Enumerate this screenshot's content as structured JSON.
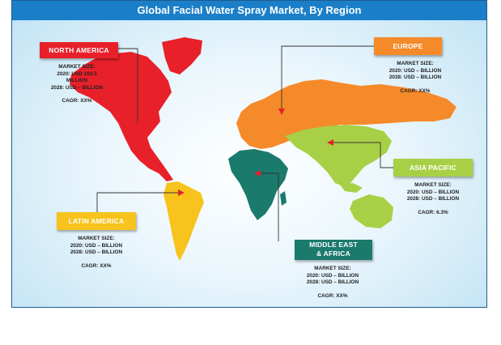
{
  "title": "Global Facial Water Spray Market, By Region",
  "colors": {
    "title_bar": "#1a7fc8",
    "north_america": "#e8202a",
    "europe": "#f58a2a",
    "asia_pacific": "#a8d046",
    "latin_america": "#f7c31c",
    "mea": "#1a7a6c",
    "ocean_light": "#eaf6fc"
  },
  "regions": {
    "north_america": {
      "name": "NORTH AMERICA",
      "label": "MARKET SIZE:",
      "line1": "2020: USD 163.5",
      "line2": "MILLION",
      "line3": "2028: USD – BILLION",
      "cagr": "CAGR: XX%"
    },
    "europe": {
      "name": "EUROPE",
      "label": "MARKET SIZE:",
      "line1": "2020: USD – BILLION",
      "line2": "2028: USD – BILLION",
      "cagr": "CAGR: XX%"
    },
    "asia_pacific": {
      "name": "ASIA PACIFIC",
      "label": "MARKET SIZE:",
      "line1": "2020: USD – BILLION",
      "line2": "2028: USD – BILLION",
      "cagr": "CAGR: 6.3%"
    },
    "latin_america": {
      "name": "LATIN AMERICA",
      "label": "MARKET SIZE:",
      "line1": "2020: USD – BILLION",
      "line2": "2028: USD – BILLION",
      "cagr": "CAGR: XX%"
    },
    "mea": {
      "name_line1": "MIDDLE EAST",
      "name_line2": "& AFRICA",
      "label": "MARKET SIZE:",
      "line1": "2020: USD – BILLION",
      "line2": "2028: USD – BILLION",
      "cagr": "CAGR: XX%"
    }
  }
}
